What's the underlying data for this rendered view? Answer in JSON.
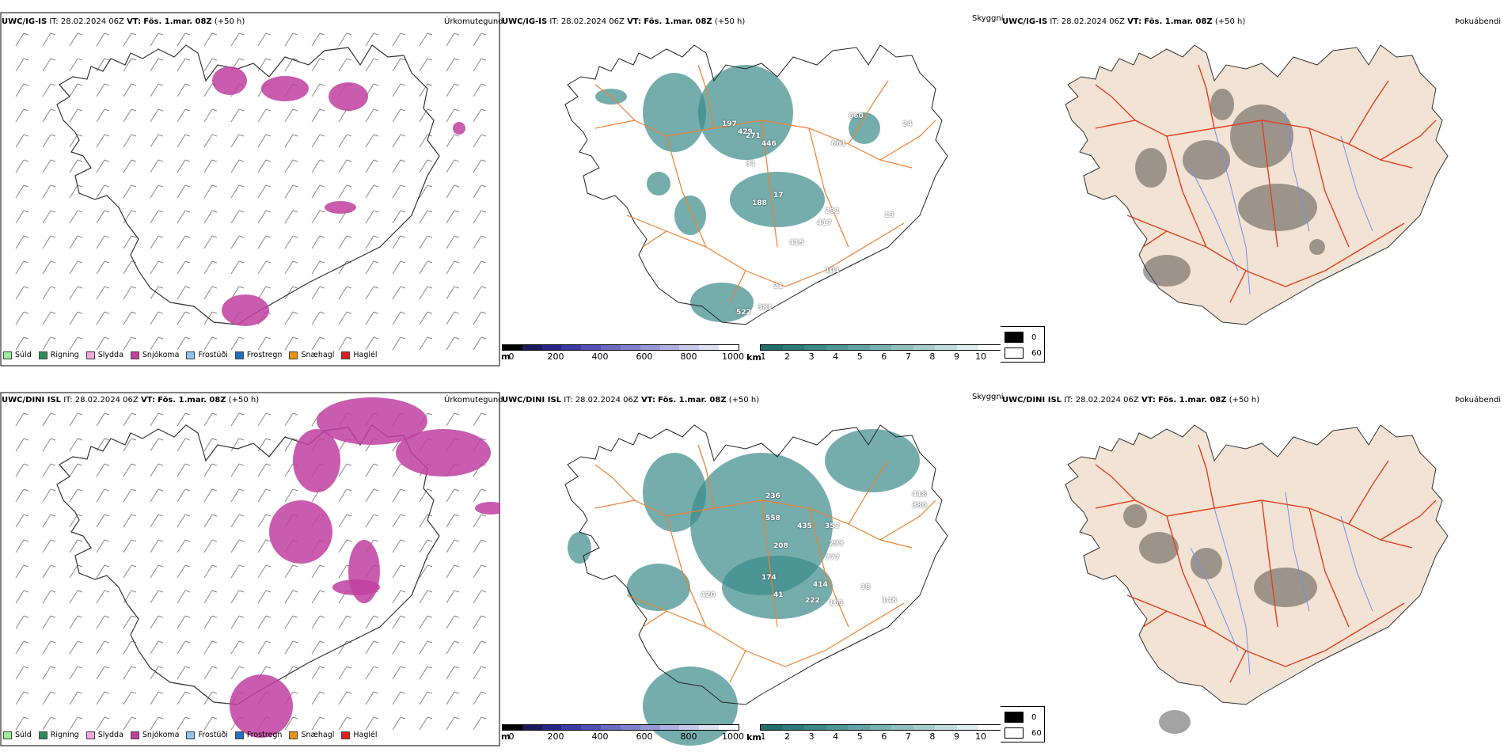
{
  "rows": [
    {
      "model": "UWC/IG-IS",
      "it_label": "IT:",
      "it_value": "28.02.2024 06Z",
      "vt_label": "VT:",
      "vt_value": "Fös. 1.mar. 08Z",
      "lead": "(+50 h)",
      "precip_title": "Úrkomutegund",
      "cloud_title": "Skyggni",
      "fog_title": "Þokuábendi",
      "cloud_labels": [
        "197",
        "429",
        "271",
        "446",
        "660",
        "661",
        "31",
        "188",
        "17",
        "231",
        "13",
        "417",
        "415",
        "101",
        "21",
        "522",
        "381",
        "24"
      ]
    },
    {
      "model": "UWC/DINI ISL",
      "it_label": "IT:",
      "it_value": "28.02.2024 06Z",
      "vt_label": "VT:",
      "vt_value": "Fös. 1.mar. 08Z",
      "lead": "(+50 h)",
      "precip_title": "Úrkomutegund",
      "cloud_title": "Skyggni",
      "fog_title": "Þokuábendi",
      "cloud_labels": [
        "236",
        "558",
        "435",
        "353",
        "208",
        "293",
        "777",
        "174",
        "414",
        "41",
        "222",
        "161",
        "18",
        "148",
        "420",
        "418",
        "380"
      ]
    }
  ],
  "precip_legend": [
    {
      "label": "Súld",
      "color": "#98f098"
    },
    {
      "label": "Rigning",
      "color": "#2e8b57"
    },
    {
      "label": "Slydda",
      "color": "#f0a8d8"
    },
    {
      "label": "Snjókoma",
      "color": "#c040a0"
    },
    {
      "label": "Frostúði",
      "color": "#90c0f0"
    },
    {
      "label": "Frostregn",
      "color": "#2070c0"
    },
    {
      "label": "Snæhagl",
      "color": "#f09010"
    },
    {
      "label": "Haglél",
      "color": "#e02020"
    }
  ],
  "ceiling_bar": {
    "unit": "m",
    "ticks": [
      "0",
      "200",
      "400",
      "600",
      "800",
      "1000"
    ],
    "colors": [
      "#000000",
      "#1a1a5c",
      "#25258a",
      "#3a3aa8",
      "#5050b8",
      "#6a6ac4",
      "#8080d0",
      "#9898d8",
      "#b0b0e0",
      "#c8c8ea",
      "#e0e0f4",
      "#ffffff"
    ]
  },
  "visibility_bar": {
    "unit": "km",
    "ticks": [
      "1",
      "2",
      "3",
      "4",
      "5",
      "6",
      "7",
      "8",
      "9",
      "10"
    ],
    "colors": [
      "#1f6e6e",
      "#2a7b7b",
      "#3a8888",
      "#4e9696",
      "#62a4a4",
      "#78b2b2",
      "#8ec0c0",
      "#a6cece",
      "#c0dddd",
      "#ddeeee",
      "#ffffff"
    ]
  },
  "fog_legend": [
    {
      "label": "0",
      "color": "#000000"
    },
    {
      "label": "60",
      "color": "#ffffff"
    }
  ],
  "colors": {
    "land_fog": "#f3e3d4",
    "road": "#f08030",
    "road_fog": "#e04020",
    "river": "#7090f0",
    "snow": "#c040a0",
    "cloud_teal": "#3a8a8a",
    "cloud_blue": "#4040c0"
  }
}
